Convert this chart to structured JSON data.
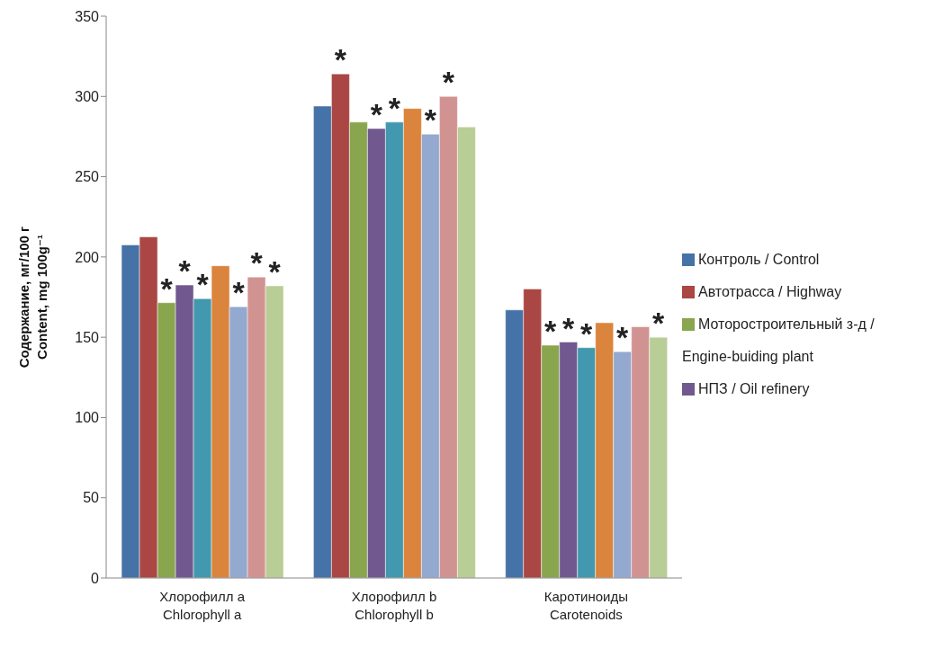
{
  "chart_data": {
    "type": "bar",
    "categories": [
      "Хлорофилл a\nChlorophyll a",
      "Хлорофилл b\nChlorophyll b",
      "Каротиноиды\nCarotenoids"
    ],
    "ylabel": "Содержание, мг/100 г\nContent, mg 100g⁻¹",
    "ylim": [
      0,
      350
    ],
    "yticks": [
      0,
      50,
      100,
      150,
      200,
      250,
      300,
      350
    ],
    "grid": false,
    "legend": "right",
    "series": [
      {
        "name": "Контроль / Control",
        "color": "#4572a7",
        "values": [
          207.5,
          294,
          167
        ]
      },
      {
        "name": "Автотрасса / Highway",
        "color": "#aa4643",
        "values": [
          212.5,
          314,
          180
        ],
        "value_labels": [
          null,
          "*",
          null
        ]
      },
      {
        "name": "Моторостроительный з-д / Engine-buiding plant",
        "color": "#89a54e",
        "values": [
          171.5,
          284,
          145
        ],
        "value_labels": [
          "*",
          null,
          "*"
        ]
      },
      {
        "name": "НПЗ / Oil refinery",
        "color": "#71588f",
        "values": [
          182.5,
          280,
          147
        ],
        "value_labels": [
          "*",
          "*",
          "*"
        ]
      },
      {
        "color": "#4198af",
        "values": [
          174,
          284,
          143.5
        ],
        "value_labels": [
          "*",
          "*",
          "*"
        ]
      },
      {
        "color": "#db843d",
        "values": [
          194.5,
          292.5,
          159
        ]
      },
      {
        "color": "#93a9cf",
        "values": [
          169,
          276.5,
          141
        ],
        "value_labels": [
          "*",
          "*",
          "*"
        ]
      },
      {
        "color": "#d19392",
        "values": [
          187.5,
          300,
          156.5
        ],
        "value_labels": [
          "*",
          "*",
          null
        ]
      },
      {
        "color": "#b9cd96",
        "values": [
          182,
          281,
          150
        ],
        "value_labels": [
          "*",
          null,
          "*"
        ]
      }
    ]
  }
}
